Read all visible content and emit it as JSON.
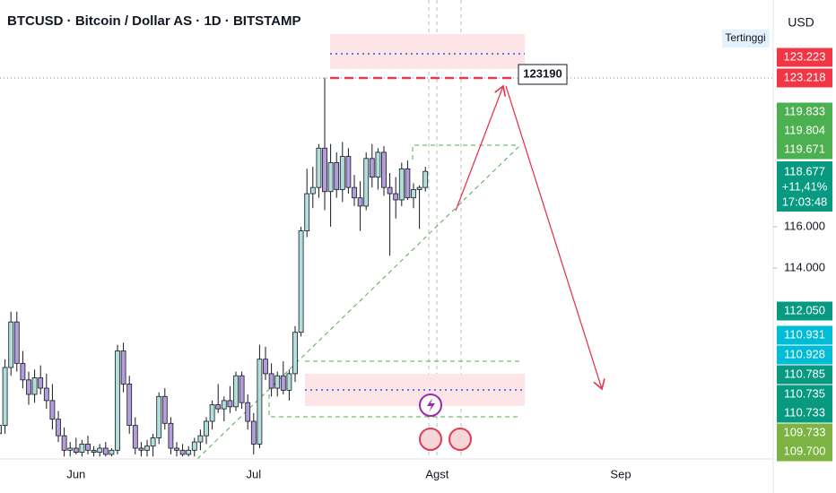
{
  "chart_data": {
    "type": "candlestick",
    "title": "BTCUSD · Bitcoin / Dollar AS · 1D · BITSTAMP",
    "currency": "USD",
    "badge": "Tertinggi",
    "annotation": "123190",
    "categories": [
      null,
      null,
      null,
      null,
      null,
      null,
      null,
      null,
      null,
      null,
      null,
      null,
      null,
      "Jun",
      null,
      null,
      null,
      null,
      null,
      null,
      null,
      null,
      null,
      null,
      null,
      null,
      null,
      null,
      null,
      null,
      null,
      null,
      null,
      null,
      null,
      null,
      null,
      null,
      null,
      null,
      null,
      null,
      null,
      "Jul",
      null,
      null,
      null,
      null,
      null,
      null,
      null,
      null,
      null,
      null,
      null,
      null,
      null,
      null,
      null,
      null,
      null,
      null,
      null,
      null,
      null,
      null,
      null,
      null,
      null,
      null,
      null,
      null,
      null,
      null,
      "Agst",
      null,
      null,
      null,
      null,
      null,
      null,
      null,
      null,
      null,
      null,
      null,
      null,
      null,
      null,
      null,
      null,
      null,
      null,
      null,
      null,
      null,
      null,
      null,
      null,
      null,
      null,
      null,
      null,
      null,
      null,
      "Sep"
    ],
    "open": [
      106000,
      106400,
      109200,
      111400,
      109400,
      108600,
      107900,
      108700,
      108200,
      107600,
      106700,
      105900,
      105200,
      105300,
      105100,
      105500,
      105200,
      105100,
      105300,
      105000,
      105200,
      110000,
      108400,
      106400,
      105300,
      105200,
      105400,
      105800,
      107800,
      106500,
      105300,
      105200,
      105000,
      105200,
      105600,
      105900,
      106600,
      107400,
      107200,
      107600,
      107300,
      108800,
      107500,
      106600,
      105500,
      109600,
      108900,
      108200,
      108800,
      108100,
      108900,
      110900,
      115800,
      117600,
      117900,
      119800,
      117700,
      119100,
      117800,
      119400,
      117900,
      117400,
      117000,
      119300,
      118400,
      119600,
      117900,
      117600,
      117300,
      118800,
      117400,
      117800,
      117900,
      null,
      null,
      null,
      null,
      null,
      null,
      null,
      null,
      null,
      null,
      null,
      null,
      null,
      null,
      null,
      null,
      null,
      null,
      null,
      null,
      null,
      null,
      null,
      null,
      null,
      null,
      null,
      null,
      null,
      null,
      null,
      null,
      null
    ],
    "high": [
      106800,
      109600,
      111900,
      111900,
      110000,
      109000,
      109100,
      109300,
      108900,
      108400,
      107100,
      106300,
      105600,
      105800,
      105700,
      105900,
      105400,
      105500,
      105600,
      105300,
      110300,
      110400,
      108800,
      106800,
      105600,
      105700,
      106000,
      108000,
      108200,
      106800,
      105600,
      105500,
      105400,
      105800,
      106200,
      106800,
      107600,
      108400,
      107800,
      108300,
      109000,
      109000,
      107900,
      107000,
      110300,
      110200,
      109400,
      109000,
      109500,
      109100,
      111200,
      116000,
      118800,
      118900,
      120000,
      123200,
      120000,
      119600,
      120100,
      119800,
      118500,
      118200,
      119600,
      120000,
      119800,
      119900,
      118600,
      118400,
      119100,
      119200,
      118100,
      118000,
      118900,
      null,
      null,
      null,
      null,
      null,
      null,
      null,
      null,
      null,
      null,
      null,
      null,
      null,
      null,
      null,
      null,
      null,
      null,
      null,
      null,
      null,
      null,
      null,
      null,
      null,
      null,
      null,
      null,
      null,
      null,
      null,
      null,
      null
    ],
    "low": [
      105200,
      106000,
      108800,
      109000,
      108200,
      107400,
      107500,
      107900,
      107200,
      106200,
      105600,
      104900,
      104900,
      105000,
      104900,
      105000,
      104900,
      104900,
      104900,
      104900,
      105000,
      108000,
      106000,
      105000,
      104900,
      104900,
      104900,
      105500,
      106200,
      105000,
      104900,
      104900,
      104900,
      104900,
      105200,
      105500,
      106200,
      107000,
      106600,
      107000,
      107100,
      107200,
      106200,
      105000,
      105300,
      108600,
      107800,
      107800,
      107900,
      107600,
      108500,
      110700,
      115500,
      116900,
      117400,
      116800,
      116000,
      117400,
      117200,
      117600,
      117000,
      115800,
      116800,
      117900,
      117800,
      117500,
      114600,
      116400,
      117000,
      117300,
      116900,
      115900,
      117700,
      null,
      null,
      null,
      null,
      null,
      null,
      null,
      null,
      null,
      null,
      null,
      null,
      null,
      null,
      null,
      null,
      null,
      null,
      null,
      null,
      null,
      null,
      null,
      null,
      null,
      null,
      null,
      null,
      null,
      null,
      null,
      null,
      null
    ],
    "close": [
      106400,
      109200,
      111400,
      109400,
      108600,
      107900,
      108700,
      108200,
      107600,
      106700,
      105900,
      105200,
      105300,
      105100,
      105500,
      105200,
      105100,
      105300,
      105000,
      105200,
      110000,
      108400,
      106400,
      105300,
      105200,
      105400,
      105800,
      107800,
      106500,
      105300,
      105200,
      105000,
      105200,
      105600,
      105900,
      106600,
      107400,
      107200,
      107600,
      107300,
      108800,
      107500,
      106600,
      105500,
      109600,
      108900,
      108200,
      108800,
      108100,
      108900,
      110900,
      115800,
      117600,
      117900,
      119800,
      117700,
      119100,
      117800,
      119400,
      117900,
      117400,
      117000,
      119300,
      118400,
      119600,
      117900,
      117600,
      117300,
      118800,
      117400,
      117800,
      117900,
      118677,
      null,
      null,
      null,
      null,
      null,
      null,
      null,
      null,
      null,
      null,
      null,
      null,
      null,
      null,
      null,
      null,
      null,
      null,
      null,
      null,
      null,
      null,
      null,
      null,
      null,
      null,
      null,
      null,
      null,
      null,
      null,
      null,
      null
    ],
    "up_color": "#b2dfdb",
    "down_color": "#b39ddb",
    "ylim": [
      104780,
      126960
    ],
    "yticks": [
      {
        "value": 116000,
        "label": "116.000"
      },
      {
        "value": 114000,
        "label": "114.000"
      }
    ],
    "price_labels": [
      {
        "text": "123.223",
        "color": "#f23645"
      },
      {
        "text": "123.218",
        "color": "#f23645"
      },
      {
        "text": "119.833",
        "color": "#4caf50"
      },
      {
        "text": "119.804",
        "color": "#4caf50"
      },
      {
        "text": "119.671",
        "color": "#4caf50"
      },
      {
        "text": "112.050",
        "color": "#089981"
      },
      {
        "text": "110.931",
        "color": "#00bcd4"
      },
      {
        "text": "110.928",
        "color": "#00bcd4"
      },
      {
        "text": "110.785",
        "color": "#089981"
      },
      {
        "text": "110.735",
        "color": "#089981"
      },
      {
        "text": "110.733",
        "color": "#089981"
      },
      {
        "text": "109.733",
        "color": "#7cb342"
      },
      {
        "text": "109.700",
        "color": "#7cb342"
      }
    ],
    "last_price": {
      "price": "118.677",
      "change": "+11,41%",
      "countdown": "17:03:48",
      "color": "#089981"
    }
  }
}
